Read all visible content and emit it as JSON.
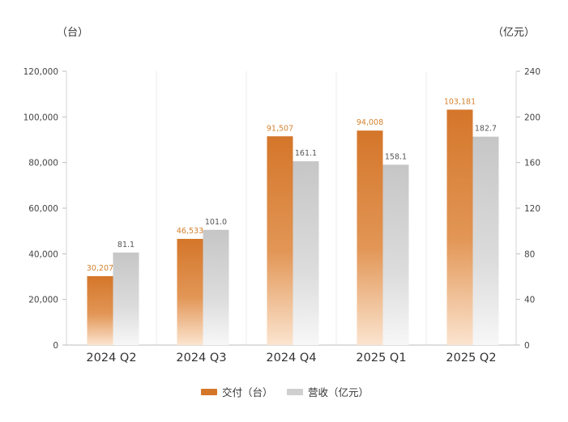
{
  "chart_data": {
    "type": "bar",
    "categories": [
      "2024 Q2",
      "2024 Q3",
      "2024 Q4",
      "2025 Q1",
      "2025 Q2"
    ],
    "series": [
      {
        "name": "交付（台）",
        "axis": "left",
        "values": [
          30207,
          46533,
          91507,
          94008,
          103181
        ],
        "labels": [
          "30,207",
          "46,533",
          "91,507",
          "94,008",
          "103,181"
        ]
      },
      {
        "name": "营收（亿元）",
        "axis": "right",
        "values": [
          81.1,
          101.0,
          161.1,
          158.1,
          182.7
        ],
        "labels": [
          "81.1",
          "101.0",
          "161.1",
          "158.1",
          "182.7"
        ]
      }
    ],
    "y_left": {
      "unit": "（台）",
      "range": [
        0,
        120000
      ],
      "ticks": [
        "0",
        "20,000",
        "40,000",
        "60,000",
        "80,000",
        "100,000",
        "120,000"
      ]
    },
    "y_right": {
      "unit": "（亿元）",
      "range": [
        0,
        240
      ],
      "ticks": [
        "0",
        "40",
        "80",
        "120",
        "160",
        "200",
        "240"
      ]
    },
    "grid": "vertical lines between categories",
    "legend_position": "bottom-center",
    "colors": {
      "delivery": "#d4762a",
      "delivery_label": "#d4822e",
      "revenue": "#c9c9c9",
      "revenue_label": "#555555"
    }
  }
}
